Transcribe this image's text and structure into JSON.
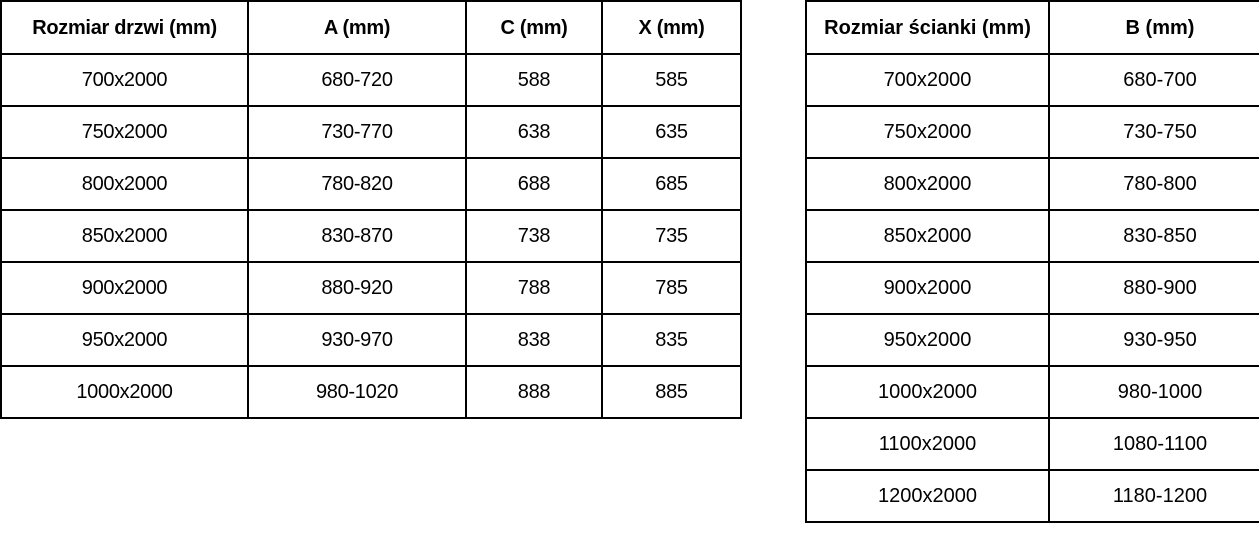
{
  "tables": [
    {
      "id": "door-size-table",
      "headers": [
        "Rozmiar drzwi (mm)",
        "A (mm)",
        "C (mm)",
        "X (mm)"
      ],
      "rows": [
        [
          "700x2000",
          "680-720",
          "588",
          "585"
        ],
        [
          "750x2000",
          "730-770",
          "638",
          "635"
        ],
        [
          "800x2000",
          "780-820",
          "688",
          "685"
        ],
        [
          "850x2000",
          "830-870",
          "738",
          "735"
        ],
        [
          "900x2000",
          "880-920",
          "788",
          "785"
        ],
        [
          "950x2000",
          "930-970",
          "838",
          "835"
        ],
        [
          "1000x2000",
          "980-1020",
          "888",
          "885"
        ]
      ]
    },
    {
      "id": "wall-size-table",
      "headers": [
        "Rozmiar ścianki (mm)",
        "B (mm)"
      ],
      "rows": [
        [
          "700x2000",
          "680-700"
        ],
        [
          "750x2000",
          "730-750"
        ],
        [
          "800x2000",
          "780-800"
        ],
        [
          "850x2000",
          "830-850"
        ],
        [
          "900x2000",
          "880-900"
        ],
        [
          "950x2000",
          "930-950"
        ],
        [
          "1000x2000",
          "980-1000"
        ],
        [
          "1100x2000",
          "1080-1100"
        ],
        [
          "1200x2000",
          "1180-1200"
        ]
      ]
    }
  ],
  "colors": {
    "border": "#000000",
    "text": "#000000",
    "background": "#ffffff"
  }
}
